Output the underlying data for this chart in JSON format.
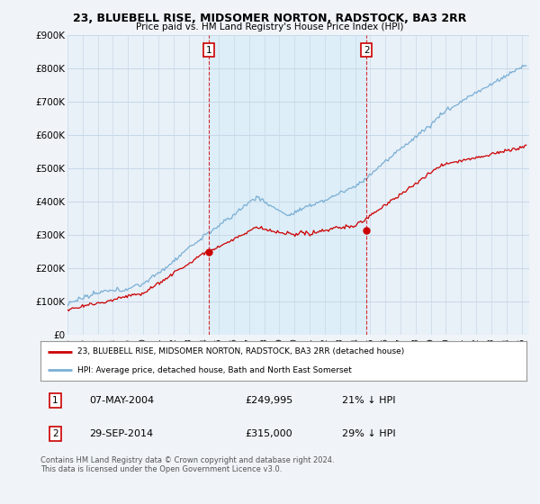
{
  "title": "23, BLUEBELL RISE, MIDSOMER NORTON, RADSTOCK, BA3 2RR",
  "subtitle": "Price paid vs. HM Land Registry's House Price Index (HPI)",
  "ylim": [
    0,
    900000
  ],
  "yticks": [
    0,
    100000,
    200000,
    300000,
    400000,
    500000,
    600000,
    700000,
    800000,
    900000
  ],
  "ytick_labels": [
    "£0",
    "£100K",
    "£200K",
    "£300K",
    "£400K",
    "£500K",
    "£600K",
    "£700K",
    "£800K",
    "£900K"
  ],
  "xlim_start": 1995.0,
  "xlim_end": 2025.5,
  "purchase1_x": 2004.354,
  "purchase1_y": 249995,
  "purchase1_label": "1",
  "purchase1_date": "07-MAY-2004",
  "purchase1_price": "£249,995",
  "purchase1_hpi": "21% ↓ HPI",
  "purchase2_x": 2014.747,
  "purchase2_y": 315000,
  "purchase2_label": "2",
  "purchase2_date": "29-SEP-2014",
  "purchase2_price": "£315,000",
  "purchase2_hpi": "29% ↓ HPI",
  "red_line_color": "#cc0000",
  "blue_line_color": "#7aafd4",
  "vline_color": "#cc0000",
  "shade_color": "#ddeef8",
  "bg_color": "#f0f4f8",
  "plot_bg_color": "#e8f0f8",
  "grid_color": "#c8d8e8",
  "legend_label_red": "23, BLUEBELL RISE, MIDSOMER NORTON, RADSTOCK, BA3 2RR (detached house)",
  "legend_label_blue": "HPI: Average price, detached house, Bath and North East Somerset",
  "footnote": "Contains HM Land Registry data © Crown copyright and database right 2024.\nThis data is licensed under the Open Government Licence v3.0."
}
